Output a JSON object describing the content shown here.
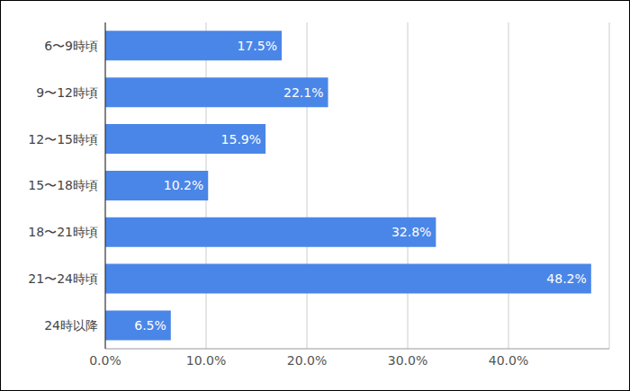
{
  "chart_data": {
    "type": "bar",
    "orientation": "horizontal",
    "categories": [
      "6〜9時頃",
      "9〜12時頃",
      "12〜15時頃",
      "15〜18時頃",
      "18〜21時頃",
      "21〜24時頃",
      "24時以降"
    ],
    "values": [
      17.5,
      22.1,
      15.9,
      10.2,
      32.8,
      48.2,
      6.5
    ],
    "value_labels": [
      "17.5%",
      "22.1%",
      "15.9%",
      "10.2%",
      "32.8%",
      "48.2%",
      "6.5%"
    ],
    "data_labels": true,
    "color": "#4a86e8",
    "xlim": [
      0,
      50
    ],
    "xticks": [
      {
        "value": 0,
        "label": "0.0%"
      },
      {
        "value": 10,
        "label": "10.0%"
      },
      {
        "value": 20,
        "label": "20.0%"
      },
      {
        "value": 30,
        "label": "30.0%"
      },
      {
        "value": 40,
        "label": "40.0%"
      }
    ],
    "grid": true
  }
}
